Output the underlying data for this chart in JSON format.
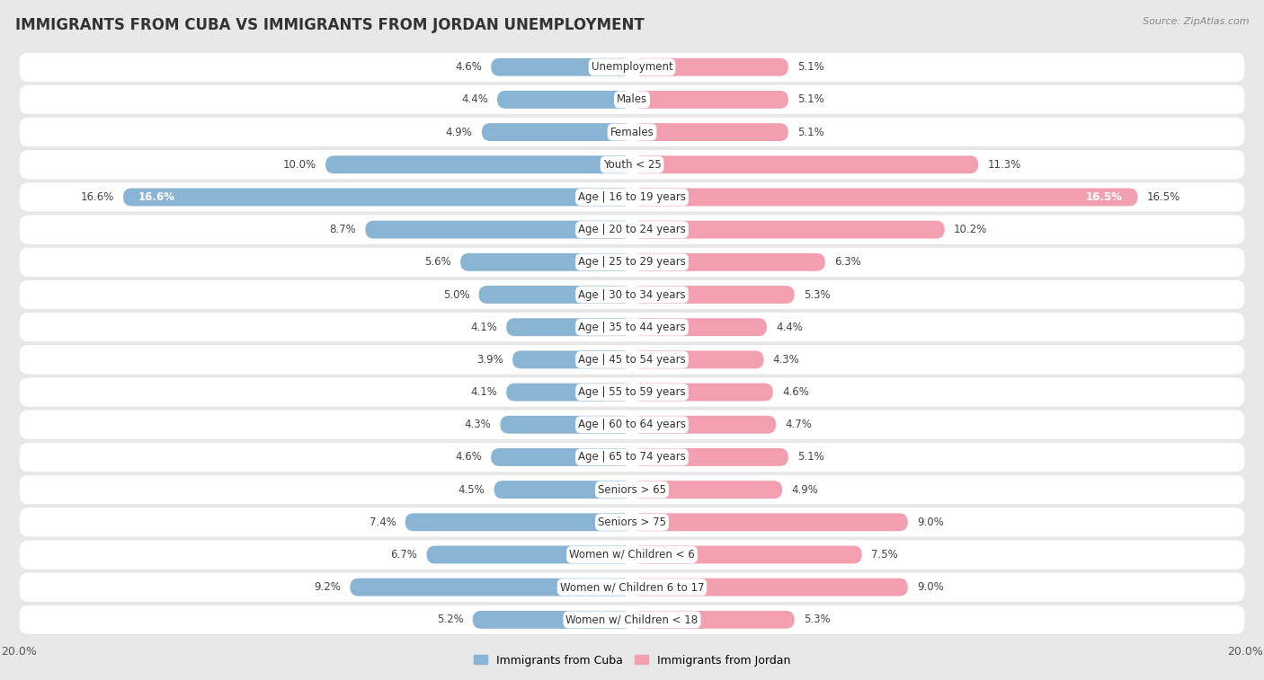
{
  "title": "IMMIGRANTS FROM CUBA VS IMMIGRANTS FROM JORDAN UNEMPLOYMENT",
  "source": "Source: ZipAtlas.com",
  "categories": [
    "Unemployment",
    "Males",
    "Females",
    "Youth < 25",
    "Age | 16 to 19 years",
    "Age | 20 to 24 years",
    "Age | 25 to 29 years",
    "Age | 30 to 34 years",
    "Age | 35 to 44 years",
    "Age | 45 to 54 years",
    "Age | 55 to 59 years",
    "Age | 60 to 64 years",
    "Age | 65 to 74 years",
    "Seniors > 65",
    "Seniors > 75",
    "Women w/ Children < 6",
    "Women w/ Children 6 to 17",
    "Women w/ Children < 18"
  ],
  "cuba_values": [
    4.6,
    4.4,
    4.9,
    10.0,
    16.6,
    8.7,
    5.6,
    5.0,
    4.1,
    3.9,
    4.1,
    4.3,
    4.6,
    4.5,
    7.4,
    6.7,
    9.2,
    5.2
  ],
  "jordan_values": [
    5.1,
    5.1,
    5.1,
    11.3,
    16.5,
    10.2,
    6.3,
    5.3,
    4.4,
    4.3,
    4.6,
    4.7,
    5.1,
    4.9,
    9.0,
    7.5,
    9.0,
    5.3
  ],
  "cuba_color": "#8ab4d4",
  "jordan_color": "#f2a0b0",
  "cuba_label": "Immigrants from Cuba",
  "jordan_label": "Immigrants from Jordan",
  "xlim": 20.0,
  "background_color": "#e8e8e8",
  "row_bg_color": "#f5f5f5",
  "title_fontsize": 12,
  "value_fontsize": 8.5,
  "cat_fontsize": 8.5,
  "axis_fontsize": 9,
  "legend_fontsize": 9
}
